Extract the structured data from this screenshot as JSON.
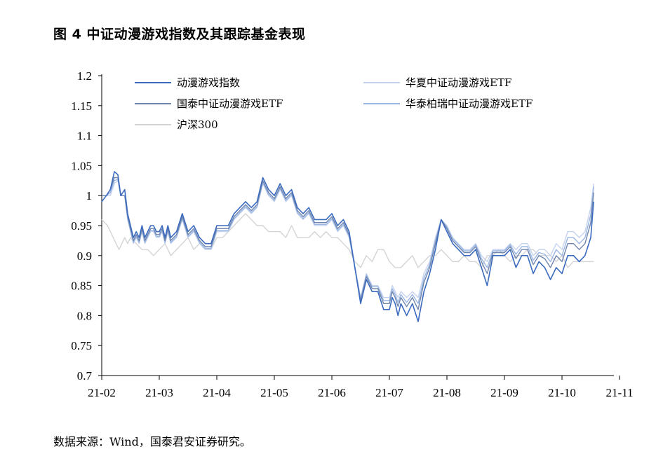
{
  "figure": {
    "title": "图 4 中证动漫游戏指数及其跟踪基金表现",
    "source": "数据来源：Wind，国泰君安证券研究。"
  },
  "chart_data": {
    "type": "line",
    "ylim": [
      0.7,
      1.2
    ],
    "yticks": [
      0.7,
      0.75,
      0.8,
      0.85,
      0.9,
      0.95,
      1,
      1.05,
      1.1,
      1.15,
      1.2
    ],
    "ytick_labels": [
      "0.7",
      "0.75",
      "0.8",
      "0.85",
      "0.9",
      "0.95",
      "1",
      "1.05",
      "1.1",
      "1.15",
      "1.2"
    ],
    "xticks": [
      "21-02",
      "21-03",
      "21-04",
      "21-05",
      "21-06",
      "21-07",
      "21-08",
      "21-09",
      "21-10",
      "21-11"
    ],
    "grid": false,
    "legend_position": "top",
    "series": [
      {
        "name": "动漫游戏指数",
        "color": "#3b6bbf",
        "x": [
          0,
          0.08,
          0.15,
          0.22,
          0.28,
          0.33,
          0.4,
          0.45,
          0.5,
          0.55,
          0.6,
          0.65,
          0.7,
          0.75,
          0.8,
          0.85,
          0.9,
          0.95,
          1,
          1.05,
          1.1,
          1.15,
          1.2,
          1.3,
          1.4,
          1.5,
          1.6,
          1.65,
          1.7,
          1.8,
          1.9,
          2,
          2.1,
          2.2,
          2.3,
          2.4,
          2.5,
          2.6,
          2.7,
          2.8,
          2.9,
          3,
          3.1,
          3.2,
          3.3,
          3.4,
          3.5,
          3.6,
          3.7,
          3.8,
          3.9,
          4,
          4.1,
          4.2,
          4.3,
          4.4,
          4.5,
          4.6,
          4.7,
          4.8,
          4.9,
          5,
          5.05,
          5.1,
          5.15,
          5.2,
          5.3,
          5.4,
          5.5,
          5.6,
          5.7,
          5.8,
          5.9,
          6,
          6.1,
          6.2,
          6.3,
          6.4,
          6.5,
          6.6,
          6.7,
          6.8,
          6.9,
          7,
          7.1,
          7.2,
          7.3,
          7.4,
          7.5,
          7.6,
          7.7,
          7.8,
          7.9,
          8,
          8.1,
          8.2,
          8.3,
          8.4,
          8.5,
          8.55
        ],
        "values": [
          0.99,
          1.0,
          1.01,
          1.04,
          1.035,
          1.0,
          1.01,
          0.97,
          0.95,
          0.93,
          0.94,
          0.93,
          0.95,
          0.93,
          0.94,
          0.95,
          0.95,
          0.94,
          0.94,
          0.95,
          0.93,
          0.95,
          0.93,
          0.94,
          0.97,
          0.94,
          0.95,
          0.94,
          0.93,
          0.92,
          0.92,
          0.95,
          0.95,
          0.95,
          0.97,
          0.98,
          0.99,
          0.98,
          0.99,
          1.03,
          1.01,
          1.0,
          1.02,
          1.0,
          1.01,
          0.98,
          0.97,
          0.98,
          0.96,
          0.96,
          0.96,
          0.97,
          0.95,
          0.96,
          0.94,
          0.88,
          0.82,
          0.86,
          0.84,
          0.84,
          0.81,
          0.81,
          0.83,
          0.82,
          0.8,
          0.82,
          0.8,
          0.82,
          0.79,
          0.84,
          0.87,
          0.91,
          0.96,
          0.94,
          0.92,
          0.91,
          0.9,
          0.9,
          0.91,
          0.88,
          0.85,
          0.9,
          0.9,
          0.9,
          0.91,
          0.88,
          0.9,
          0.9,
          0.87,
          0.89,
          0.88,
          0.86,
          0.88,
          0.87,
          0.9,
          0.9,
          0.89,
          0.9,
          0.93,
          0.99
        ]
      },
      {
        "name": "华夏中证动漫游戏ETF",
        "color": "#c5d3ee",
        "x": [
          0,
          0.08,
          0.15,
          0.22,
          0.28,
          0.33,
          0.4,
          0.45,
          0.5,
          0.55,
          0.6,
          0.65,
          0.7,
          0.75,
          0.8,
          0.85,
          0.9,
          0.95,
          1,
          1.05,
          1.1,
          1.15,
          1.2,
          1.3,
          1.4,
          1.5,
          1.6,
          1.65,
          1.7,
          1.8,
          1.9,
          2,
          2.1,
          2.2,
          2.3,
          2.4,
          2.5,
          2.6,
          2.7,
          2.8,
          2.9,
          3,
          3.1,
          3.2,
          3.3,
          3.4,
          3.5,
          3.6,
          3.7,
          3.8,
          3.9,
          4,
          4.1,
          4.2,
          4.3,
          4.4,
          4.5,
          4.6,
          4.7,
          4.8,
          4.9,
          5,
          5.05,
          5.1,
          5.15,
          5.2,
          5.3,
          5.4,
          5.5,
          5.6,
          5.7,
          5.8,
          5.9,
          6,
          6.1,
          6.2,
          6.3,
          6.4,
          6.5,
          6.6,
          6.7,
          6.8,
          6.9,
          7,
          7.1,
          7.2,
          7.3,
          7.4,
          7.5,
          7.6,
          7.7,
          7.8,
          7.9,
          8,
          8.1,
          8.2,
          8.3,
          8.4,
          8.5,
          8.55
        ],
        "values": [
          1.0,
          1.0,
          1.0,
          1.02,
          1.025,
          1.0,
          1.0,
          0.96,
          0.94,
          0.92,
          0.93,
          0.92,
          0.94,
          0.92,
          0.93,
          0.94,
          0.94,
          0.93,
          0.93,
          0.94,
          0.92,
          0.94,
          0.92,
          0.93,
          0.96,
          0.93,
          0.94,
          0.93,
          0.92,
          0.91,
          0.91,
          0.94,
          0.94,
          0.94,
          0.96,
          0.97,
          0.98,
          0.97,
          0.98,
          1.02,
          1.0,
          0.99,
          1.01,
          0.99,
          1.0,
          0.97,
          0.96,
          0.97,
          0.95,
          0.95,
          0.95,
          0.96,
          0.94,
          0.95,
          0.93,
          0.88,
          0.83,
          0.87,
          0.85,
          0.85,
          0.83,
          0.83,
          0.85,
          0.84,
          0.83,
          0.84,
          0.83,
          0.84,
          0.83,
          0.87,
          0.89,
          0.93,
          0.96,
          0.95,
          0.93,
          0.92,
          0.91,
          0.91,
          0.92,
          0.9,
          0.89,
          0.91,
          0.91,
          0.91,
          0.92,
          0.91,
          0.92,
          0.92,
          0.9,
          0.91,
          0.91,
          0.9,
          0.92,
          0.91,
          0.94,
          0.94,
          0.93,
          0.94,
          0.98,
          1.02
        ]
      },
      {
        "name": "国泰中证动漫游戏ETF",
        "color": "#6f85ad",
        "x": [
          0,
          0.08,
          0.15,
          0.22,
          0.28,
          0.33,
          0.4,
          0.45,
          0.5,
          0.55,
          0.6,
          0.65,
          0.7,
          0.75,
          0.8,
          0.85,
          0.9,
          0.95,
          1,
          1.05,
          1.1,
          1.15,
          1.2,
          1.3,
          1.4,
          1.5,
          1.6,
          1.65,
          1.7,
          1.8,
          1.9,
          2,
          2.1,
          2.2,
          2.3,
          2.4,
          2.5,
          2.6,
          2.7,
          2.8,
          2.9,
          3,
          3.1,
          3.2,
          3.3,
          3.4,
          3.5,
          3.6,
          3.7,
          3.8,
          3.9,
          4,
          4.1,
          4.2,
          4.3,
          4.4,
          4.5,
          4.6,
          4.7,
          4.8,
          4.9,
          5,
          5.05,
          5.1,
          5.15,
          5.2,
          5.3,
          5.4,
          5.5,
          5.6,
          5.7,
          5.8,
          5.9,
          6,
          6.1,
          6.2,
          6.3,
          6.4,
          6.5,
          6.6,
          6.7,
          6.8,
          6.9,
          7,
          7.1,
          7.2,
          7.3,
          7.4,
          7.5,
          7.6,
          7.7,
          7.8,
          7.9,
          8,
          8.1,
          8.2,
          8.3,
          8.4,
          8.5,
          8.55
        ],
        "values": [
          1.0,
          1.0,
          1.01,
          1.03,
          1.03,
          1.0,
          1.0,
          0.965,
          0.945,
          0.925,
          0.935,
          0.925,
          0.945,
          0.925,
          0.935,
          0.945,
          0.945,
          0.935,
          0.935,
          0.945,
          0.925,
          0.945,
          0.925,
          0.935,
          0.965,
          0.935,
          0.945,
          0.935,
          0.925,
          0.915,
          0.915,
          0.945,
          0.945,
          0.945,
          0.965,
          0.975,
          0.985,
          0.975,
          0.985,
          1.025,
          1.005,
          0.995,
          1.015,
          0.995,
          1.005,
          0.975,
          0.965,
          0.975,
          0.955,
          0.955,
          0.955,
          0.965,
          0.945,
          0.955,
          0.935,
          0.88,
          0.825,
          0.865,
          0.845,
          0.845,
          0.82,
          0.82,
          0.84,
          0.83,
          0.815,
          0.83,
          0.815,
          0.83,
          0.81,
          0.855,
          0.88,
          0.92,
          0.96,
          0.945,
          0.925,
          0.915,
          0.905,
          0.905,
          0.915,
          0.89,
          0.87,
          0.905,
          0.905,
          0.905,
          0.915,
          0.895,
          0.91,
          0.91,
          0.885,
          0.9,
          0.895,
          0.88,
          0.9,
          0.89,
          0.92,
          0.92,
          0.91,
          0.92,
          0.955,
          1.005
        ]
      },
      {
        "name": "华泰柏瑞中证动漫游戏ETF",
        "color": "#9ab6e3",
        "x": [
          0,
          0.08,
          0.15,
          0.22,
          0.28,
          0.33,
          0.4,
          0.45,
          0.5,
          0.55,
          0.6,
          0.65,
          0.7,
          0.75,
          0.8,
          0.85,
          0.9,
          0.95,
          1,
          1.05,
          1.1,
          1.15,
          1.2,
          1.3,
          1.4,
          1.5,
          1.6,
          1.65,
          1.7,
          1.8,
          1.9,
          2,
          2.1,
          2.2,
          2.3,
          2.4,
          2.5,
          2.6,
          2.7,
          2.8,
          2.9,
          3,
          3.1,
          3.2,
          3.3,
          3.4,
          3.5,
          3.6,
          3.7,
          3.8,
          3.9,
          4,
          4.1,
          4.2,
          4.3,
          4.4,
          4.5,
          4.6,
          4.7,
          4.8,
          4.9,
          5,
          5.05,
          5.1,
          5.15,
          5.2,
          5.3,
          5.4,
          5.5,
          5.6,
          5.7,
          5.8,
          5.9,
          6,
          6.1,
          6.2,
          6.3,
          6.4,
          6.5,
          6.6,
          6.7,
          6.8,
          6.9,
          7,
          7.1,
          7.2,
          7.3,
          7.4,
          7.5,
          7.6,
          7.7,
          7.8,
          7.9,
          8,
          8.1,
          8.2,
          8.3,
          8.4,
          8.5,
          8.55
        ],
        "values": [
          1.0,
          1.0,
          1.005,
          1.025,
          1.027,
          1.0,
          1.0,
          0.962,
          0.942,
          0.922,
          0.932,
          0.922,
          0.942,
          0.922,
          0.932,
          0.942,
          0.942,
          0.932,
          0.932,
          0.942,
          0.922,
          0.942,
          0.922,
          0.932,
          0.962,
          0.932,
          0.942,
          0.932,
          0.922,
          0.912,
          0.912,
          0.942,
          0.942,
          0.942,
          0.962,
          0.972,
          0.982,
          0.972,
          0.982,
          1.022,
          1.002,
          0.992,
          1.012,
          0.992,
          1.002,
          0.972,
          0.962,
          0.972,
          0.952,
          0.952,
          0.952,
          0.962,
          0.942,
          0.952,
          0.932,
          0.88,
          0.828,
          0.868,
          0.848,
          0.848,
          0.825,
          0.825,
          0.845,
          0.835,
          0.822,
          0.835,
          0.822,
          0.835,
          0.82,
          0.862,
          0.885,
          0.925,
          0.96,
          0.948,
          0.928,
          0.918,
          0.908,
          0.908,
          0.918,
          0.895,
          0.88,
          0.908,
          0.908,
          0.908,
          0.918,
          0.902,
          0.915,
          0.915,
          0.892,
          0.905,
          0.902,
          0.89,
          0.91,
          0.9,
          0.93,
          0.93,
          0.92,
          0.93,
          0.968,
          1.015
        ]
      },
      {
        "name": "沪深300",
        "color": "#d4d4d4",
        "x": [
          0,
          0.1,
          0.2,
          0.3,
          0.4,
          0.45,
          0.5,
          0.6,
          0.7,
          0.8,
          0.9,
          1.0,
          1.1,
          1.2,
          1.3,
          1.4,
          1.5,
          1.6,
          1.7,
          1.8,
          1.9,
          2.0,
          2.1,
          2.2,
          2.3,
          2.4,
          2.5,
          2.6,
          2.7,
          2.8,
          2.9,
          3.0,
          3.1,
          3.2,
          3.3,
          3.4,
          3.5,
          3.6,
          3.7,
          3.8,
          3.9,
          4.0,
          4.1,
          4.2,
          4.3,
          4.4,
          4.5,
          4.6,
          4.7,
          4.8,
          4.9,
          5.0,
          5.1,
          5.2,
          5.3,
          5.4,
          5.5,
          5.6,
          5.7,
          5.8,
          5.9,
          6.0,
          6.1,
          6.2,
          6.3,
          6.4,
          6.5,
          6.6,
          6.7,
          6.8,
          6.9,
          7.0,
          7.1,
          7.2,
          7.3,
          7.4,
          7.5,
          7.6,
          7.7,
          7.8,
          7.9,
          8.0,
          8.1,
          8.2,
          8.3,
          8.4,
          8.5,
          8.55
        ],
        "values": [
          0.96,
          0.95,
          0.93,
          0.91,
          0.93,
          0.92,
          0.93,
          0.92,
          0.91,
          0.91,
          0.9,
          0.91,
          0.92,
          0.9,
          0.91,
          0.92,
          0.93,
          0.91,
          0.92,
          0.91,
          0.91,
          0.93,
          0.93,
          0.94,
          0.95,
          0.96,
          0.97,
          0.96,
          0.95,
          0.95,
          0.94,
          0.94,
          0.94,
          0.93,
          0.95,
          0.93,
          0.93,
          0.93,
          0.94,
          0.93,
          0.94,
          0.93,
          0.93,
          0.92,
          0.91,
          0.89,
          0.88,
          0.9,
          0.89,
          0.91,
          0.91,
          0.89,
          0.88,
          0.88,
          0.89,
          0.9,
          0.88,
          0.89,
          0.9,
          0.9,
          0.91,
          0.9,
          0.89,
          0.89,
          0.9,
          0.89,
          0.89,
          0.88,
          0.9,
          0.9,
          0.91,
          0.9,
          0.89,
          0.9,
          0.9,
          0.91,
          0.91,
          0.9,
          0.9,
          0.9,
          0.89,
          0.9,
          0.88,
          0.89,
          0.89,
          0.89,
          0.89,
          0.89
        ]
      }
    ]
  }
}
